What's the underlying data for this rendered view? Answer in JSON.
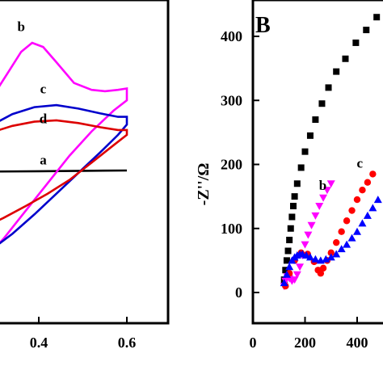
{
  "chart_data": [
    {
      "panel": "A",
      "type": "line",
      "title": "",
      "xlabel": "",
      "ylabel": "",
      "xlim": [
        0.2,
        0.7
      ],
      "ylim": [
        -2.0,
        2.2
      ],
      "xticks": [
        0.4,
        0.6
      ],
      "xtick_labels": [
        "0.4",
        "0.6"
      ],
      "grid": false,
      "series": [
        {
          "name": "a",
          "color": "#000000",
          "closed": false,
          "points": [
            [
              0.2,
              0.02
            ],
            [
              0.3,
              0.02
            ],
            [
              0.4,
              0.025
            ],
            [
              0.5,
              0.03
            ],
            [
              0.6,
              0.035
            ]
          ]
        },
        {
          "name": "b",
          "color": "#ff00ff",
          "closed": true,
          "points": [
            [
              0.2,
              0.55
            ],
            [
              0.24,
              0.75
            ],
            [
              0.29,
              1.05
            ],
            [
              0.33,
              1.45
            ],
            [
              0.36,
              1.75
            ],
            [
              0.385,
              1.88
            ],
            [
              0.41,
              1.82
            ],
            [
              0.44,
              1.6
            ],
            [
              0.48,
              1.3
            ],
            [
              0.52,
              1.2
            ],
            [
              0.55,
              1.18
            ],
            [
              0.58,
              1.2
            ],
            [
              0.6,
              1.22
            ],
            [
              0.6,
              1.05
            ],
            [
              0.57,
              0.9
            ],
            [
              0.52,
              0.6
            ],
            [
              0.47,
              0.25
            ],
            [
              0.42,
              -0.15
            ],
            [
              0.37,
              -0.55
            ],
            [
              0.32,
              -0.95
            ],
            [
              0.27,
              -1.3
            ],
            [
              0.23,
              -1.6
            ],
            [
              0.2,
              -1.75
            ]
          ]
        },
        {
          "name": "c",
          "color": "#0000cc",
          "closed": true,
          "points": [
            [
              0.2,
              0.3
            ],
            [
              0.24,
              0.5
            ],
            [
              0.29,
              0.68
            ],
            [
              0.34,
              0.85
            ],
            [
              0.39,
              0.95
            ],
            [
              0.44,
              0.98
            ],
            [
              0.49,
              0.93
            ],
            [
              0.54,
              0.86
            ],
            [
              0.58,
              0.81
            ],
            [
              0.6,
              0.81
            ],
            [
              0.6,
              0.7
            ],
            [
              0.58,
              0.55
            ],
            [
              0.54,
              0.3
            ],
            [
              0.49,
              0.0
            ],
            [
              0.44,
              -0.3
            ],
            [
              0.39,
              -0.6
            ],
            [
              0.34,
              -0.88
            ],
            [
              0.29,
              -1.12
            ],
            [
              0.25,
              -1.3
            ],
            [
              0.2,
              -1.45
            ]
          ]
        },
        {
          "name": "d",
          "color": "#dd0000",
          "closed": true,
          "points": [
            [
              0.2,
              0.25
            ],
            [
              0.24,
              0.45
            ],
            [
              0.29,
              0.58
            ],
            [
              0.34,
              0.68
            ],
            [
              0.39,
              0.74
            ],
            [
              0.44,
              0.76
            ],
            [
              0.49,
              0.72
            ],
            [
              0.54,
              0.66
            ],
            [
              0.58,
              0.62
            ],
            [
              0.6,
              0.62
            ],
            [
              0.6,
              0.55
            ],
            [
              0.57,
              0.4
            ],
            [
              0.52,
              0.15
            ],
            [
              0.47,
              -0.1
            ],
            [
              0.42,
              -0.3
            ],
            [
              0.37,
              -0.48
            ],
            [
              0.32,
              -0.65
            ],
            [
              0.27,
              -0.8
            ],
            [
              0.23,
              -0.92
            ],
            [
              0.2,
              -1.0
            ]
          ]
        }
      ],
      "labels": [
        {
          "text": "a",
          "x": 0.41,
          "y": 0.12
        },
        {
          "text": "b",
          "x": 0.36,
          "y": 2.05
        },
        {
          "text": "c",
          "x": 0.41,
          "y": 1.15
        },
        {
          "text": "d",
          "x": 0.41,
          "y": 0.72
        }
      ]
    },
    {
      "panel": "B",
      "panel_label": "B",
      "type": "scatter",
      "title": "",
      "xlabel": "",
      "ylabel": "-Z''/Ω",
      "xlim": [
        0,
        500
      ],
      "ylim": [
        -40,
        470
      ],
      "xticks": [
        0,
        200,
        400
      ],
      "xtick_labels": [
        "0",
        "200",
        "400"
      ],
      "yticks": [
        0,
        100,
        200,
        300,
        400
      ],
      "ytick_labels": [
        "0",
        "100",
        "200",
        "300",
        "400"
      ],
      "grid": false,
      "series": [
        {
          "name": "a",
          "color": "#000000",
          "marker": "square",
          "x": [
            120,
            125,
            130,
            135,
            140,
            145,
            150,
            155,
            160,
            170,
            185,
            200,
            220,
            240,
            265,
            290,
            320,
            355,
            395,
            435,
            475
          ],
          "y": [
            20,
            35,
            50,
            65,
            82,
            100,
            118,
            135,
            150,
            170,
            195,
            220,
            245,
            270,
            295,
            320,
            345,
            365,
            390,
            410,
            430
          ]
        },
        {
          "name": "b",
          "color": "#ff00ff",
          "marker": "triangle-down",
          "x": [
            120,
            125,
            132,
            140,
            150,
            160,
            170,
            180,
            190,
            200,
            212,
            225,
            240,
            255,
            270,
            285,
            300
          ],
          "y": [
            10,
            18,
            25,
            22,
            18,
            20,
            28,
            40,
            58,
            75,
            90,
            105,
            120,
            135,
            148,
            160,
            170
          ]
        },
        {
          "name": "c",
          "color": "#ff0000",
          "marker": "circle",
          "x": [
            125,
            140,
            160,
            185,
            210,
            235,
            250,
            260,
            270,
            285,
            300,
            320,
            340,
            360,
            380,
            400,
            420,
            440,
            460
          ],
          "y": [
            10,
            30,
            50,
            62,
            60,
            48,
            35,
            30,
            38,
            50,
            62,
            78,
            95,
            112,
            128,
            145,
            160,
            172,
            185
          ]
        },
        {
          "name": "d",
          "color": "#0000ff",
          "marker": "triangle-up",
          "x": [
            120,
            130,
            140,
            150,
            160,
            170,
            180,
            190,
            205,
            220,
            240,
            260,
            280,
            300,
            320,
            340,
            360,
            380,
            400,
            420,
            440,
            460,
            480
          ],
          "y": [
            15,
            28,
            40,
            50,
            55,
            58,
            60,
            60,
            58,
            55,
            52,
            50,
            52,
            55,
            60,
            68,
            75,
            85,
            95,
            108,
            120,
            132,
            145
          ]
        }
      ],
      "labels": [
        {
          "text": "b",
          "x": 268,
          "y": 160
        },
        {
          "text": "c",
          "x": 410,
          "y": 195
        }
      ]
    }
  ]
}
